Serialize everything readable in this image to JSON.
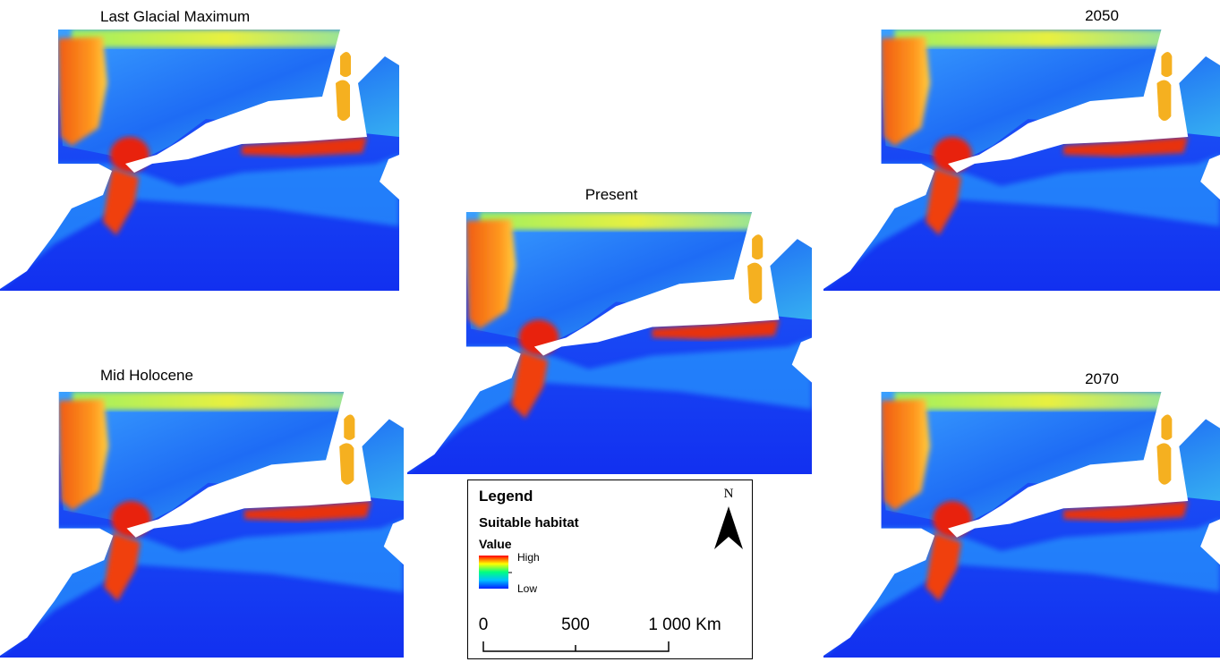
{
  "panels": [
    {
      "title": "Last Glacial Maximum"
    },
    {
      "title": "Mid Holocene"
    },
    {
      "title": "Present"
    },
    {
      "title": "2050"
    },
    {
      "title": "2070"
    }
  ],
  "legend": {
    "title": "Legend",
    "subtitle": "Suitable habitat",
    "field": "Value",
    "high": "High",
    "low": "Low",
    "north": "N"
  },
  "scale_bar": {
    "labels": [
      "0",
      "500",
      "1 000 Km"
    ]
  }
}
